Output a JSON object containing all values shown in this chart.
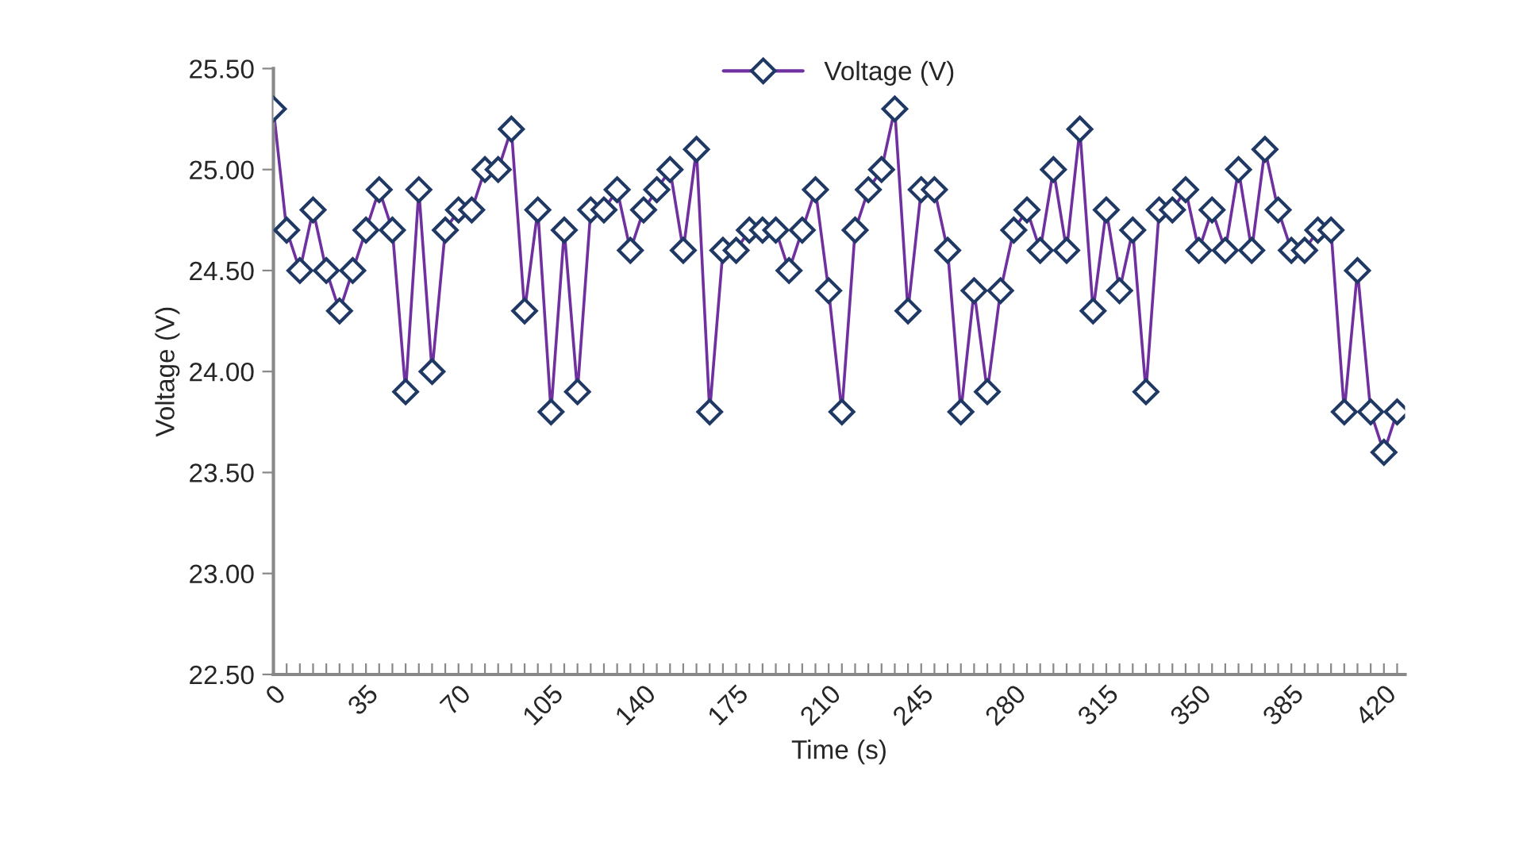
{
  "chart_data": {
    "type": "line",
    "xlabel": "Time (s)",
    "ylabel": "Voltage (V)",
    "categories": [
      "0",
      null,
      null,
      null,
      null,
      null,
      null,
      "35",
      null,
      null,
      null,
      null,
      null,
      null,
      "70",
      null,
      null,
      null,
      null,
      null,
      null,
      "105",
      null,
      null,
      null,
      null,
      null,
      null,
      "140",
      null,
      null,
      null,
      null,
      null,
      null,
      "175",
      null,
      null,
      null,
      null,
      null,
      null,
      "210",
      null,
      null,
      null,
      null,
      null,
      null,
      "245",
      null,
      null,
      null,
      null,
      null,
      null,
      "280",
      null,
      null,
      null,
      null,
      null,
      null,
      "315",
      null,
      null,
      null,
      null,
      null,
      null,
      "350",
      null,
      null,
      null,
      null,
      null,
      null,
      "385",
      null,
      null,
      null,
      null,
      null,
      null,
      "420",
      null
    ],
    "series": [
      {
        "name": "Voltage (V)",
        "color": "#7030a0",
        "values": [
          25.3,
          24.7,
          24.5,
          24.8,
          24.5,
          24.3,
          24.5,
          24.7,
          24.9,
          24.7,
          23.9,
          24.9,
          24.0,
          24.7,
          24.8,
          24.8,
          25.0,
          25.0,
          25.2,
          24.3,
          24.8,
          23.8,
          24.7,
          23.9,
          24.8,
          24.8,
          24.9,
          24.6,
          24.8,
          24.9,
          25.0,
          24.6,
          25.1,
          23.8,
          24.6,
          24.6,
          24.7,
          24.7,
          24.7,
          24.5,
          24.7,
          24.9,
          24.4,
          23.8,
          24.7,
          24.9,
          25.0,
          25.3,
          24.3,
          24.9,
          24.9,
          24.6,
          23.8,
          24.4,
          23.9,
          24.4,
          24.7,
          24.8,
          24.6,
          25.0,
          24.6,
          25.2,
          24.3,
          24.8,
          24.4,
          24.7,
          23.9,
          24.8,
          24.8,
          24.9,
          24.6,
          24.8,
          24.6,
          25.0,
          24.6,
          25.1,
          24.8,
          24.6,
          24.6,
          24.7,
          24.7,
          23.8,
          24.5,
          23.8,
          23.6,
          23.8
        ]
      }
    ],
    "ylim": [
      22.5,
      25.5
    ],
    "yticks": [
      {
        "value": 22.5,
        "label": "22.50"
      },
      {
        "value": 23.0,
        "label": "23.00"
      },
      {
        "value": 23.5,
        "label": "23.50"
      },
      {
        "value": 24.0,
        "label": "24.00"
      },
      {
        "value": 24.5,
        "label": "24.50"
      },
      {
        "value": 25.0,
        "label": "25.00"
      },
      {
        "value": 25.5,
        "label": "25.50"
      }
    ],
    "legend": "top",
    "marker": "diamond",
    "line_style": "solid",
    "grid": false
  }
}
